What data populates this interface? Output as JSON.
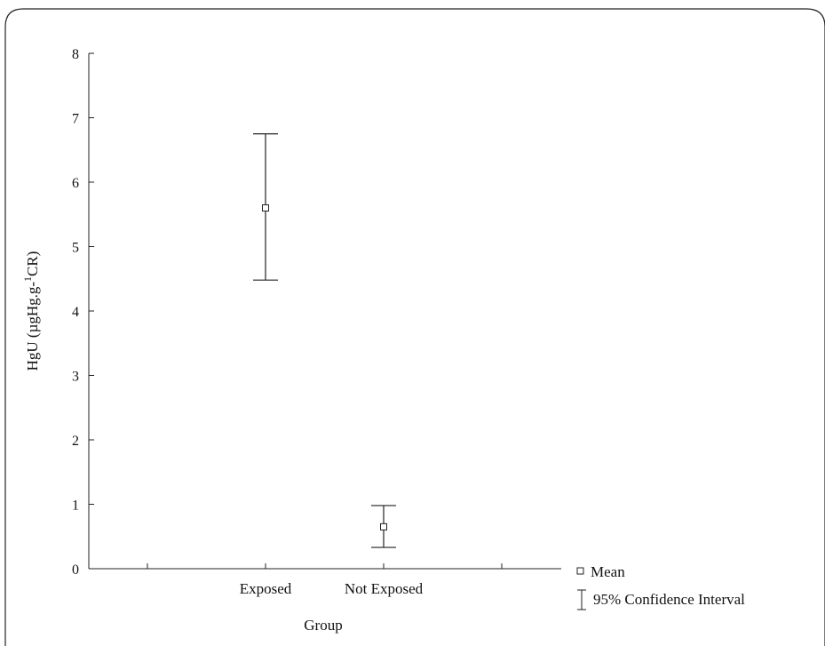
{
  "chart_data": {
    "type": "scatter",
    "title": "",
    "xlabel": "Group",
    "ylabel_main": "HgU (µgHg.g-",
    "ylabel_sup": "1",
    "ylabel_tail": "CR)",
    "categories": [
      "Exposed",
      "Not Exposed"
    ],
    "ylim": [
      0,
      8
    ],
    "yticks": [
      "0",
      "1",
      "2",
      "3",
      "4",
      "5",
      "6",
      "7",
      "8"
    ],
    "series": [
      {
        "name": "Mean",
        "values": [
          5.6,
          0.65
        ],
        "ci_lower": [
          4.48,
          0.33
        ],
        "ci_upper": [
          6.75,
          0.98
        ]
      }
    ],
    "legend": {
      "position": "bottom-right",
      "mean_label": "Mean",
      "ci_label": "95% Confidence Interval"
    },
    "grid": false
  }
}
